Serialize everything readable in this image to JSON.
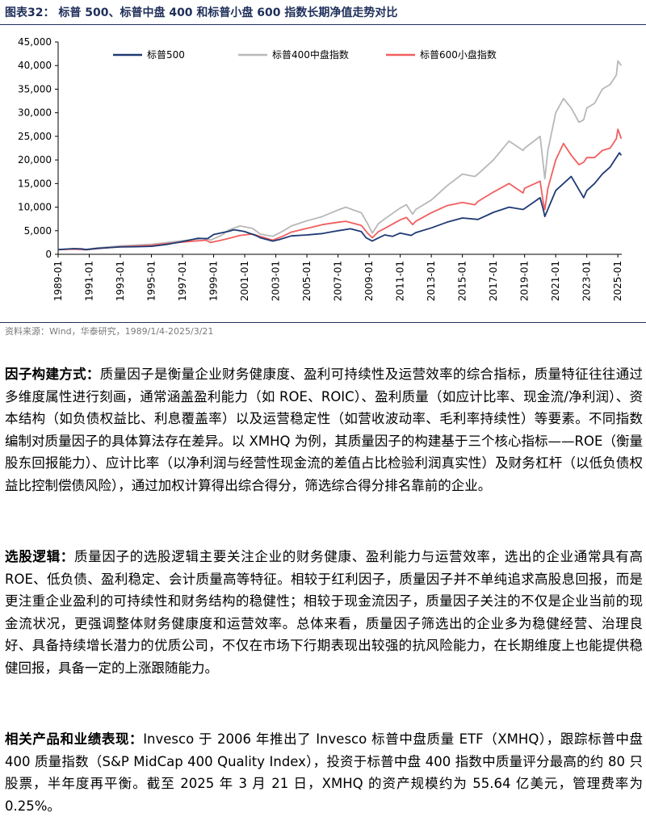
{
  "figure_title": "图表32：  标普 500、标普中盘 400 和标普小盘 600 指数长期净值走势对比",
  "source_note": "资料来源：Wind，华泰研究，1989/1/4-2025/3/21",
  "paragraphs": [
    {
      "heading": "因子构建方式：",
      "body": "质量因子是衡量企业财务健康度、盈利可持续性及运营效率的综合指标，质量特征往往通过多维度属性进行刻画，通常涵盖盈利能力（如 ROE、ROIC）、盈利质量（如应计比率、现金流/净利润）、资本结构（如负债权益比、利息覆盖率）以及运营稳定性（如营收波动率、毛利率持续性）等要素。不同指数编制对质量因子的具体算法存在差异。以 XMHQ 为例，其质量因子的构建基于三个核心指标——ROE（衡量股东回报能力）、应计比率（以净利润与经营性现金流的差值占比检验利润真实性）及财务杠杆（以低负债权益比控制偿债风险），通过加权计算得出综合得分，筛选综合得分排名靠前的企业。"
    },
    {
      "heading": "选股逻辑：",
      "body": "质量因子的选股逻辑主要关注企业的财务健康、盈利能力与运营效率，选出的企业通常具有高 ROE、低负债、盈利稳定、会计质量高等特征。相较于红利因子，质量因子并不单纯追求高股息回报，而是更注重企业盈利的可持续性和财务结构的稳健性；相较于现金流因子，质量因子关注的不仅是企业当前的现金流状况，更强调整体财务健康度和运营效率。总体来看，质量因子筛选出的企业多为稳健经营、治理良好、具备持续增长潜力的优质公司，不仅在市场下行期表现出较强的抗风险能力，在长期维度上也能提供稳健回报，具备一定的上涨跟随能力。"
    },
    {
      "heading": "相关产品和业绩表现：",
      "body": "Invesco 于 2006 年推出了 Invesco 标普中盘质量 ETF（XMHQ），跟踪标普中盘 400 质量指数（S&P MidCap 400 Quality Index），投资于标普中盘 400 指数中质量评分最高的约 80 只股票，半年度再平衡。截至 2025 年 3 月 21 日，XMHQ 的资产规模约为 55.64 亿美元，管理费率为 0.25%。"
    }
  ],
  "chart_data": {
    "type": "line",
    "title": "标普 500、标普中盘 400 和标普小盘 600 指数长期净值走势对比",
    "xlabel": "",
    "ylabel": "",
    "xlim": [
      1989.0,
      2025.25
    ],
    "ylim": [
      0,
      45000
    ],
    "y_ticks": [
      0,
      5000,
      10000,
      15000,
      20000,
      25000,
      30000,
      35000,
      40000,
      45000
    ],
    "y_tick_labels": [
      "0",
      "5,000",
      "10,000",
      "15,000",
      "20,000",
      "25,000",
      "30,000",
      "35,000",
      "40,000",
      "45,000"
    ],
    "x_ticks": [
      1989,
      1991,
      1993,
      1995,
      1997,
      1999,
      2001,
      2003,
      2005,
      2007,
      2009,
      2011,
      2013,
      2015,
      2017,
      2019,
      2021,
      2023,
      2025
    ],
    "x_tick_labels": [
      "1989-01",
      "1991-01",
      "1993-01",
      "1995-01",
      "1997-01",
      "1999-01",
      "2001-01",
      "2003-01",
      "2005-01",
      "2007-01",
      "2009-01",
      "2011-01",
      "2013-01",
      "2015-01",
      "2017-01",
      "2019-01",
      "2021-01",
      "2023-01",
      "2025-01"
    ],
    "legend_position": "top",
    "grid": false,
    "series": [
      {
        "name": "标普500",
        "color": "#1f3a73",
        "x": [
          1989.0,
          1990.0,
          1990.5,
          1990.8,
          1991.5,
          1993.0,
          1994.0,
          1995.0,
          1996.0,
          1997.0,
          1998.0,
          1998.6,
          1999.0,
          2000.0,
          2000.3,
          2000.7,
          2001.0,
          2001.7,
          2002.0,
          2002.8,
          2003.2,
          2004.0,
          2005.0,
          2006.0,
          2007.0,
          2007.8,
          2008.5,
          2008.8,
          2009.2,
          2009.5,
          2010.0,
          2010.5,
          2011.0,
          2011.7,
          2012.0,
          2013.0,
          2014.0,
          2015.0,
          2016.0,
          2017.0,
          2018.0,
          2018.9,
          2019.0,
          2020.0,
          2020.2,
          2020.3,
          2021.0,
          2022.0,
          2022.8,
          2023.0,
          2023.5,
          2024.0,
          2024.5,
          2024.8,
          2025.1,
          2025.22
        ],
        "values": [
          1000,
          1200,
          1150,
          1000,
          1250,
          1550,
          1600,
          1700,
          2100,
          2700,
          3400,
          3300,
          4200,
          4900,
          5200,
          5000,
          4800,
          4000,
          3500,
          2800,
          3100,
          3900,
          4100,
          4400,
          5000,
          5400,
          4800,
          3500,
          2800,
          3300,
          4100,
          3800,
          4500,
          4000,
          4600,
          5600,
          6800,
          7700,
          7400,
          8900,
          10000,
          9500,
          9700,
          12000,
          9500,
          8000,
          13500,
          16500,
          12000,
          13500,
          15000,
          17000,
          18500,
          20000,
          21500,
          21000
        ]
      },
      {
        "name": "标普400中盘指数",
        "color": "#b8b8b8",
        "x": [
          1989.0,
          1990.0,
          1990.8,
          1991.5,
          1993.0,
          1995.0,
          1997.0,
          1998.5,
          1998.8,
          1999.5,
          2000.0,
          2000.7,
          2001.5,
          2002.0,
          2002.8,
          2003.5,
          2004.0,
          2005.0,
          2006.0,
          2007.0,
          2007.5,
          2008.5,
          2008.9,
          2009.2,
          2009.6,
          2010.0,
          2011.0,
          2011.4,
          2011.8,
          2012.0,
          2013.0,
          2014.0,
          2015.0,
          2015.8,
          2016.0,
          2017.0,
          2018.0,
          2018.9,
          2019.0,
          2020.0,
          2020.2,
          2020.3,
          2020.5,
          2021.0,
          2021.5,
          2022.0,
          2022.5,
          2022.8,
          2023.0,
          2023.5,
          2024.0,
          2024.5,
          2024.9,
          2025.0,
          2025.22
        ],
        "values": [
          1000,
          1200,
          1050,
          1350,
          1800,
          2100,
          2900,
          3400,
          3000,
          4000,
          5200,
          6000,
          5500,
          4300,
          3800,
          5000,
          6000,
          7100,
          8000,
          9400,
          10000,
          8800,
          6500,
          4500,
          6500,
          7500,
          9800,
          10500,
          8500,
          9500,
          11500,
          14500,
          17000,
          16500,
          17000,
          20000,
          24000,
          22000,
          22500,
          25000,
          19000,
          16000,
          22000,
          30000,
          33000,
          31000,
          28000,
          28500,
          31000,
          32000,
          35000,
          36000,
          38000,
          41000,
          40000
        ]
      },
      {
        "name": "标普600小盘指数",
        "color": "#f25f5f",
        "x": [
          1989.0,
          1990.0,
          1990.8,
          1991.5,
          1993.0,
          1995.0,
          1997.0,
          1998.5,
          1998.8,
          1999.5,
          2000.0,
          2000.7,
          2001.5,
          2002.0,
          2002.8,
          2003.5,
          2004.0,
          2005.0,
          2006.0,
          2007.0,
          2007.5,
          2008.5,
          2008.9,
          2009.2,
          2009.6,
          2010.0,
          2011.0,
          2011.4,
          2011.8,
          2012.0,
          2013.0,
          2014.0,
          2015.0,
          2015.8,
          2016.0,
          2017.0,
          2018.0,
          2018.9,
          2019.0,
          2020.0,
          2020.2,
          2020.3,
          2020.5,
          2021.0,
          2021.5,
          2022.0,
          2022.5,
          2022.8,
          2023.0,
          2023.5,
          2024.0,
          2024.5,
          2024.9,
          2025.0,
          2025.22
        ],
        "values": [
          1000,
          1100,
          950,
          1200,
          1600,
          1900,
          2600,
          3000,
          2500,
          3000,
          3400,
          4000,
          4300,
          3800,
          3000,
          3900,
          4700,
          5500,
          6300,
          6800,
          7000,
          6100,
          4500,
          3500,
          4800,
          5500,
          7300,
          7800,
          6300,
          7000,
          8800,
          10300,
          11000,
          10500,
          11200,
          13200,
          15000,
          13000,
          14000,
          15500,
          11000,
          9500,
          14000,
          20000,
          23500,
          21000,
          19000,
          19500,
          20500,
          20500,
          22000,
          22500,
          24500,
          26500,
          24500
        ]
      }
    ]
  }
}
